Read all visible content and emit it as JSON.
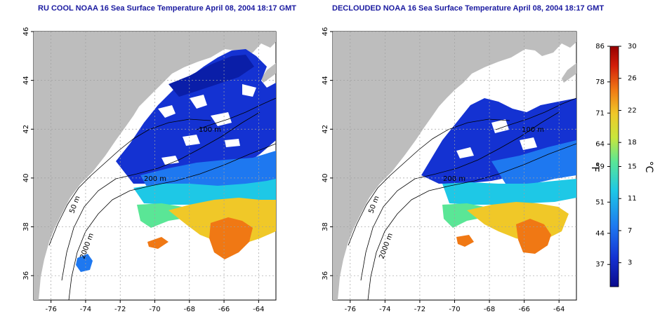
{
  "maps": [
    {
      "title": "RU COOL NOAA 16 Sea Surface Temperature April 08, 2004 18:17 GMT",
      "contour_labels": [
        "50 m",
        "200 m",
        "2000 m",
        "100 m"
      ],
      "x_ticks": [
        "-76",
        "-74",
        "-72",
        "-70",
        "-68",
        "-66",
        "-64"
      ],
      "y_ticks": [
        "36",
        "38",
        "40",
        "42",
        "44",
        "46"
      ],
      "x_range": [
        -77.0,
        -63.0
      ],
      "y_range": [
        35.0,
        46.0
      ]
    },
    {
      "title": "DECLOUDED NOAA 16 Sea Surface Temperature April 08, 2004 18:17 GMT",
      "contour_labels": [
        "50 m",
        "200 m",
        "2000 m",
        "100 m"
      ],
      "x_ticks": [
        "-76",
        "-74",
        "-72",
        "-70",
        "-68",
        "-66",
        "-64"
      ],
      "y_ticks": [
        "36",
        "38",
        "40",
        "42",
        "44",
        "46"
      ],
      "x_range": [
        -77.0,
        -63.0
      ],
      "y_range": [
        35.0,
        46.0
      ]
    }
  ],
  "colorbar": {
    "fahrenheit_ticks": [
      "86",
      "78",
      "71",
      "64",
      "59",
      "51",
      "44",
      "37"
    ],
    "celsius_ticks": [
      "30",
      "26",
      "22",
      "18",
      "15",
      "11",
      "7",
      "3"
    ],
    "fahrenheit_label": "°F",
    "celsius_label": "°C",
    "colors": [
      "#0a0a8c",
      "#1432d2",
      "#1e78f0",
      "#1ec8e6",
      "#5ae696",
      "#c8e63c",
      "#f0c828",
      "#f07814",
      "#d21e0a",
      "#960000"
    ]
  },
  "colors": {
    "land": "#bdbdbd",
    "cloud": "#ffffff",
    "title": "#1a1aa0",
    "grid": "#a0a0a0"
  }
}
